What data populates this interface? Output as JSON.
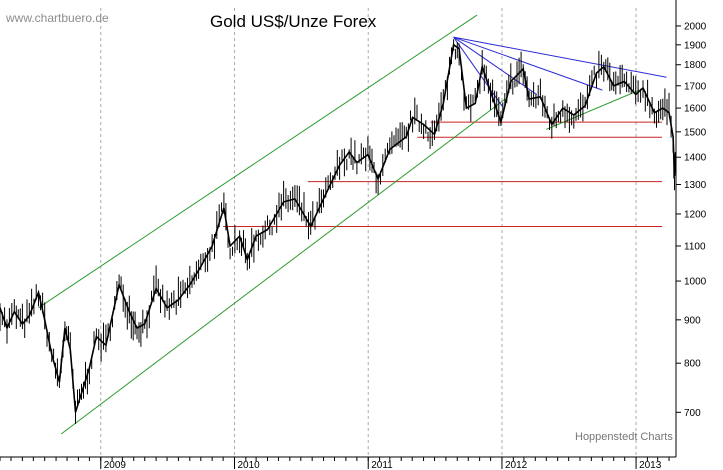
{
  "header": {
    "watermark": "www.chartbuero.de",
    "title": "Gold US$/Unze Forex",
    "credit": "Hoppenstedt Charts"
  },
  "colors": {
    "price": "#000000",
    "channel": "#2f9a2f",
    "resistance": "#2b2bd6",
    "horizontal": "#cc2222",
    "grid": "#aaaaaa",
    "watermark": "#8c8c8c",
    "credit": "#777777"
  },
  "chart_data": {
    "type": "line",
    "title": "Gold US$/Unze Forex",
    "xlabel": "",
    "ylabel": "",
    "y_scale": "log",
    "ylim": [
      620,
      2100
    ],
    "xlim": [
      "2008-04-01",
      "2013-04-20"
    ],
    "y_ticks": [
      700,
      800,
      900,
      1000,
      1100,
      1200,
      1300,
      1400,
      1500,
      1600,
      1700,
      1800,
      1900,
      2000
    ],
    "x_ticks": [
      {
        "label": "2009",
        "date": "2009-01-01"
      },
      {
        "label": "2010",
        "date": "2010-01-01"
      },
      {
        "label": "2011",
        "date": "2011-01-01"
      },
      {
        "label": "2012",
        "date": "2012-01-01"
      },
      {
        "label": "2013",
        "date": "2013-01-01"
      }
    ],
    "grid": true,
    "series": [
      {
        "role": "price",
        "points": [
          [
            "2008-04-01",
            930
          ],
          [
            "2008-04-20",
            880
          ],
          [
            "2008-05-10",
            920
          ],
          [
            "2008-06-01",
            890
          ],
          [
            "2008-06-20",
            910
          ],
          [
            "2008-07-15",
            970
          ],
          [
            "2008-08-01",
            900
          ],
          [
            "2008-08-20",
            820
          ],
          [
            "2008-09-10",
            760
          ],
          [
            "2008-09-25",
            880
          ],
          [
            "2008-10-10",
            830
          ],
          [
            "2008-10-24",
            700
          ],
          [
            "2008-11-15",
            750
          ],
          [
            "2008-12-01",
            790
          ],
          [
            "2008-12-20",
            860
          ],
          [
            "2009-01-15",
            840
          ],
          [
            "2009-02-20",
            990
          ],
          [
            "2009-03-20",
            920
          ],
          [
            "2009-04-10",
            880
          ],
          [
            "2009-05-01",
            890
          ],
          [
            "2009-06-01",
            980
          ],
          [
            "2009-07-01",
            930
          ],
          [
            "2009-08-01",
            950
          ],
          [
            "2009-09-01",
            990
          ],
          [
            "2009-10-01",
            1040
          ],
          [
            "2009-11-01",
            1100
          ],
          [
            "2009-12-03",
            1220
          ],
          [
            "2009-12-20",
            1100
          ],
          [
            "2010-01-15",
            1130
          ],
          [
            "2010-02-05",
            1060
          ],
          [
            "2010-03-01",
            1130
          ],
          [
            "2010-04-01",
            1150
          ],
          [
            "2010-05-15",
            1240
          ],
          [
            "2010-06-15",
            1250
          ],
          [
            "2010-07-28",
            1160
          ],
          [
            "2010-09-01",
            1250
          ],
          [
            "2010-10-15",
            1370
          ],
          [
            "2010-11-10",
            1420
          ],
          [
            "2010-12-01",
            1380
          ],
          [
            "2010-12-31",
            1410
          ],
          [
            "2011-01-28",
            1320
          ],
          [
            "2011-03-01",
            1430
          ],
          [
            "2011-04-15",
            1480
          ],
          [
            "2011-05-02",
            1560
          ],
          [
            "2011-06-01",
            1530
          ],
          [
            "2011-07-01",
            1490
          ],
          [
            "2011-07-25",
            1620
          ],
          [
            "2011-08-22",
            1900
          ],
          [
            "2011-09-06",
            1880
          ],
          [
            "2011-09-26",
            1600
          ],
          [
            "2011-10-20",
            1620
          ],
          [
            "2011-11-08",
            1790
          ],
          [
            "2011-12-29",
            1540
          ],
          [
            "2012-01-25",
            1720
          ],
          [
            "2012-02-28",
            1780
          ],
          [
            "2012-03-15",
            1640
          ],
          [
            "2012-04-15",
            1650
          ],
          [
            "2012-05-16",
            1530
          ],
          [
            "2012-06-15",
            1600
          ],
          [
            "2012-07-15",
            1570
          ],
          [
            "2012-08-15",
            1610
          ],
          [
            "2012-09-15",
            1760
          ],
          [
            "2012-10-05",
            1790
          ],
          [
            "2012-11-01",
            1700
          ],
          [
            "2012-11-30",
            1720
          ],
          [
            "2012-12-31",
            1660
          ],
          [
            "2013-01-20",
            1690
          ],
          [
            "2013-02-20",
            1580
          ],
          [
            "2013-03-15",
            1600
          ],
          [
            "2013-04-01",
            1580
          ],
          [
            "2013-04-12",
            1480
          ],
          [
            "2013-04-16",
            1330
          ],
          [
            "2013-04-19",
            1420
          ]
        ]
      }
    ],
    "trendlines": [
      {
        "role": "channel-upper",
        "points": [
          [
            "2008-07-15",
            930
          ],
          [
            "2011-10-25",
            2060
          ]
        ]
      },
      {
        "role": "channel-lower",
        "points": [
          [
            "2008-09-15",
            660
          ],
          [
            "2012-01-10",
            1640
          ]
        ]
      },
      {
        "role": "support",
        "points": [
          [
            "2012-05-01",
            1510
          ],
          [
            "2013-01-10",
            1680
          ]
        ]
      },
      {
        "role": "resistance",
        "points": [
          [
            "2011-08-22",
            1940
          ],
          [
            "2013-03-25",
            1740
          ]
        ]
      },
      {
        "role": "resistance",
        "points": [
          [
            "2011-08-22",
            1940
          ],
          [
            "2012-10-01",
            1680
          ]
        ]
      },
      {
        "role": "resistance",
        "points": [
          [
            "2011-08-22",
            1940
          ],
          [
            "2012-04-05",
            1660
          ]
        ]
      },
      {
        "role": "resistance",
        "points": [
          [
            "2011-08-22",
            1940
          ],
          [
            "2012-01-01",
            1610
          ]
        ]
      }
    ],
    "horizontal_levels": [
      {
        "value": 1540,
        "from": "2011-06-20",
        "to": "2013-04-20"
      },
      {
        "value": 1478,
        "from": "2011-05-15",
        "to": "2013-04-20"
      },
      {
        "value": 1310,
        "from": "2010-07-20",
        "to": "2013-04-20"
      },
      {
        "value": 1160,
        "from": "2009-12-01",
        "to": "2013-04-20"
      }
    ]
  }
}
